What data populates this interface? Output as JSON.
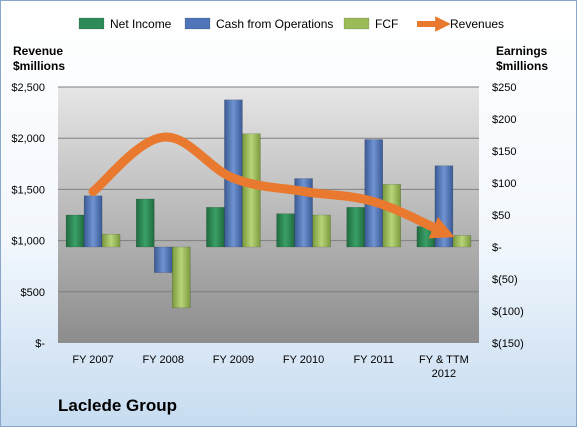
{
  "company": "Laclede Group",
  "colors": {
    "net_income": "#2e8b57",
    "cash_ops": "#4f74b8",
    "fcf": "#9bbb59",
    "revenues": "#e8792e"
  },
  "chart_data": {
    "type": "bar",
    "categories": [
      "FY 2007",
      "FY 2008",
      "FY 2009",
      "FY 2010",
      "FY 2011",
      "FY & TTM 2012"
    ],
    "series": [
      {
        "name": "Net Income",
        "axis": "right",
        "values": [
          50,
          75,
          62,
          52,
          62,
          32
        ]
      },
      {
        "name": "Cash from Operations",
        "axis": "right",
        "values": [
          80,
          -40,
          230,
          107,
          168,
          127
        ]
      },
      {
        "name": "FCF",
        "axis": "right",
        "values": [
          20,
          -95,
          177,
          50,
          98,
          18
        ]
      },
      {
        "name": "Revenues",
        "type": "line",
        "axis": "left",
        "values": [
          1480,
          2010,
          1610,
          1480,
          1380,
          1080
        ]
      }
    ],
    "y_left": {
      "title": [
        "Revenue",
        "$millions"
      ],
      "range": [
        0,
        2500
      ],
      "ticks": [
        "$-",
        "$500",
        "$1,000",
        "$1,500",
        "$2,000",
        "$2,500"
      ]
    },
    "y_right": {
      "title": [
        "Earnings",
        "$millions"
      ],
      "range": [
        -150,
        250
      ],
      "ticks": [
        "$(150)",
        "$(100)",
        "$(50)",
        "$-",
        "$50",
        "$100",
        "$150",
        "$200",
        "$250"
      ]
    },
    "legend": [
      "Net Income",
      "Cash from Operations",
      "FCF",
      "Revenues"
    ],
    "legend_position": "top",
    "grid": true
  }
}
